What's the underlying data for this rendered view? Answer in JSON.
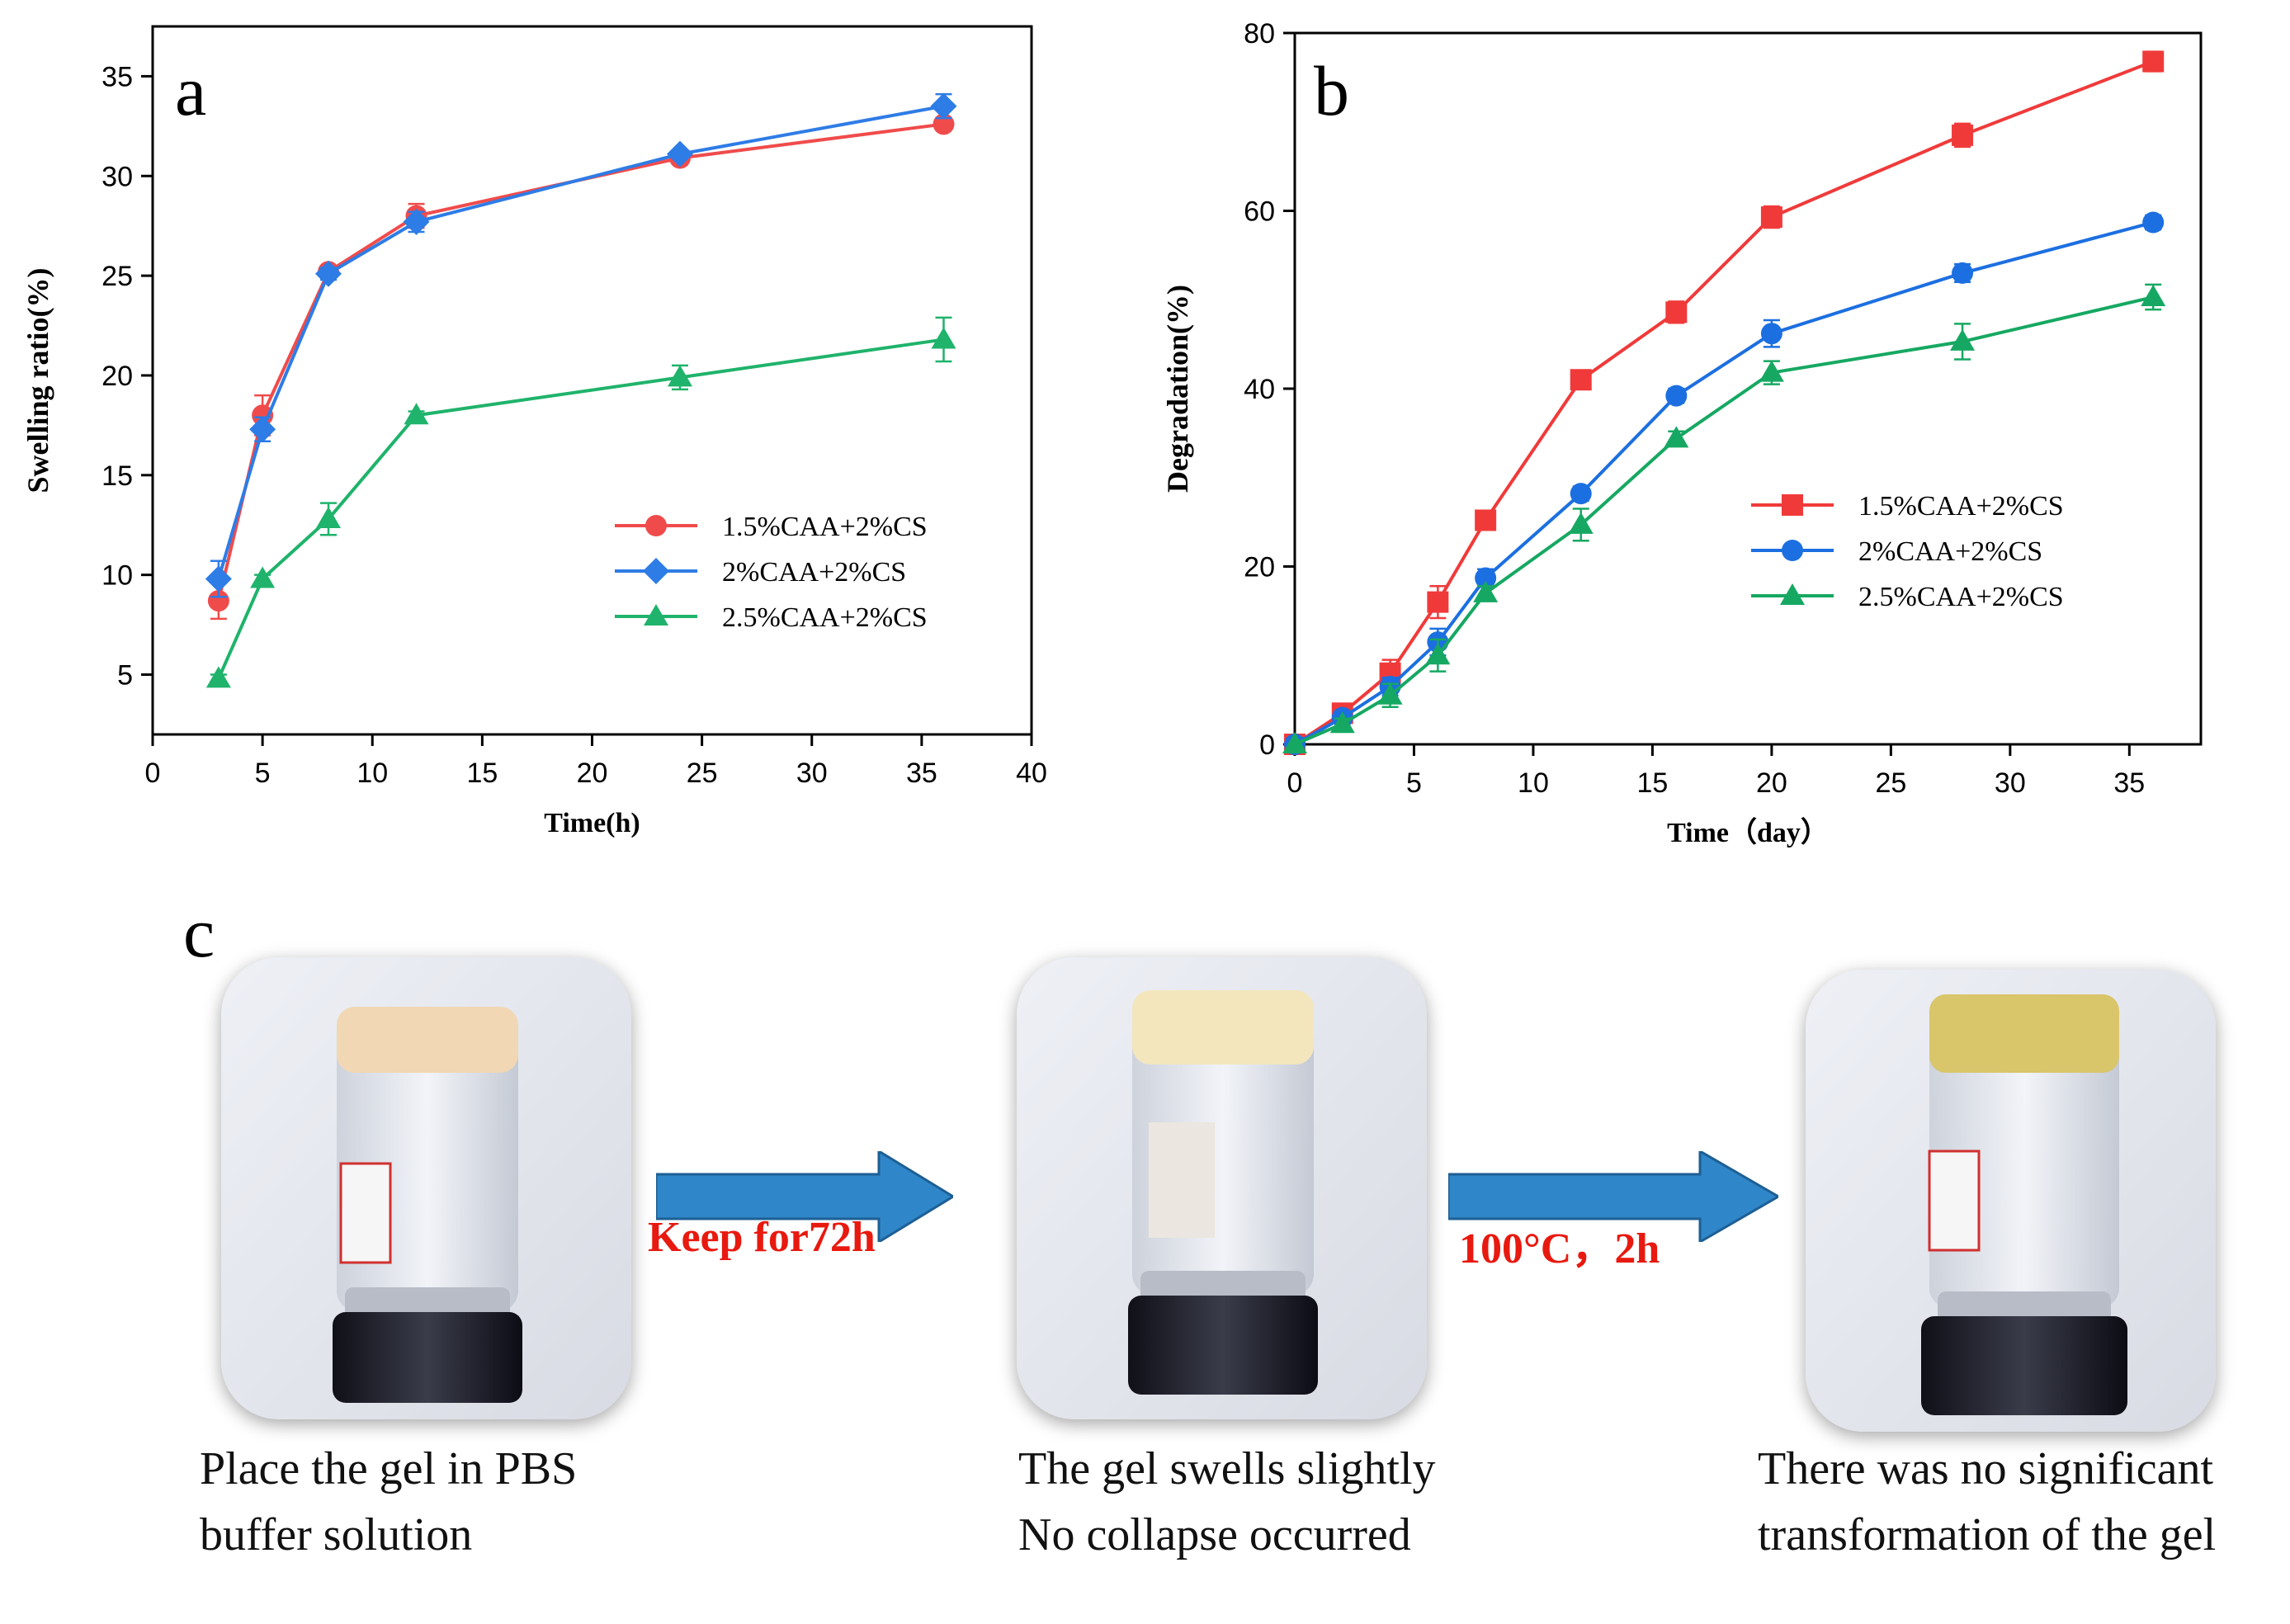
{
  "chart_data": [
    {
      "panel": "a",
      "type": "line",
      "title": "",
      "xlabel": "Time(h)",
      "ylabel": "Swelling ratio(%)",
      "xlim": [
        0,
        40
      ],
      "ylim": [
        2,
        37.5
      ],
      "xticks": [
        0,
        5,
        10,
        15,
        20,
        25,
        30,
        35,
        40
      ],
      "yticks": [
        5,
        10,
        15,
        20,
        25,
        30,
        35
      ],
      "x": [
        3,
        5,
        8,
        12,
        24,
        36
      ],
      "series": [
        {
          "name": "1.5%CAA+2%CS",
          "color": "#f04b4b",
          "marker": "circle",
          "values": [
            8.7,
            18.0,
            25.2,
            28.0,
            30.9,
            32.6
          ],
          "errors": [
            0.9,
            1.0,
            0.2,
            0.6,
            0.2,
            0.3
          ]
        },
        {
          "name": "2%CAA+2%CS",
          "color": "#2e7ce6",
          "marker": "diamond",
          "values": [
            9.8,
            17.3,
            25.1,
            27.7,
            31.1,
            33.5
          ],
          "errors": [
            0.9,
            0.6,
            0.3,
            0.5,
            0.2,
            0.6
          ]
        },
        {
          "name": "2.5%CAA+2%CS",
          "color": "#1fb36b",
          "marker": "triangle",
          "values": [
            4.8,
            9.8,
            12.8,
            18.0,
            19.9,
            21.8
          ],
          "errors": [
            0.2,
            0.2,
            0.8,
            0.2,
            0.6,
            1.1
          ]
        }
      ],
      "legend_position": "center-right"
    },
    {
      "panel": "b",
      "type": "line",
      "title": "",
      "xlabel": "Time（day）",
      "ylabel": "Degradation(%)",
      "xlim": [
        0,
        38
      ],
      "ylim": [
        0,
        80
      ],
      "xticks": [
        0,
        5,
        10,
        15,
        20,
        25,
        30,
        35
      ],
      "yticks": [
        0,
        20,
        40,
        60,
        80
      ],
      "x": [
        0,
        2,
        4,
        6,
        8,
        12,
        16,
        20,
        28,
        36
      ],
      "series": [
        {
          "name": "1.5%CAA+2%CS",
          "color": "#f03a3a",
          "marker": "square",
          "values": [
            0,
            3.5,
            8.0,
            16.0,
            25.2,
            41.0,
            48.6,
            59.3,
            68.5,
            76.8
          ],
          "errors": [
            0,
            0.6,
            1.5,
            1.8,
            0.8,
            0.7,
            1.2,
            1.2,
            1.3,
            1.1
          ]
        },
        {
          "name": "2%CAA+2%CS",
          "color": "#1c6fe0",
          "marker": "circle",
          "values": [
            0,
            3.0,
            6.5,
            11.5,
            18.7,
            28.2,
            39.2,
            46.2,
            53.0,
            58.7
          ],
          "errors": [
            0,
            0.6,
            1.0,
            1.5,
            1.0,
            0.8,
            0.8,
            1.5,
            1.0,
            0.8
          ]
        },
        {
          "name": "2.5%CAA+2%CS",
          "color": "#16a862",
          "marker": "triangle",
          "values": [
            0,
            2.3,
            5.5,
            10.0,
            17.0,
            24.7,
            34.4,
            41.8,
            45.3,
            50.3
          ],
          "errors": [
            0,
            0.6,
            1.3,
            1.8,
            0.8,
            1.8,
            0.8,
            1.3,
            2.0,
            1.4
          ]
        }
      ],
      "legend_position": "center-right"
    }
  ],
  "panel_labels": {
    "a": "a",
    "b": "b",
    "c": "c"
  },
  "panel_c": {
    "arrow1_label": "Keep for72h",
    "arrow2_label": "100°C，2h",
    "arrow_color": "#2f86c8",
    "captions": [
      [
        "Place the gel in PBS",
        "buffer solution"
      ],
      [
        "The gel swells slightly",
        "No collapse occurred"
      ],
      [
        "There was no significant",
        "transformation of the gel"
      ]
    ]
  }
}
